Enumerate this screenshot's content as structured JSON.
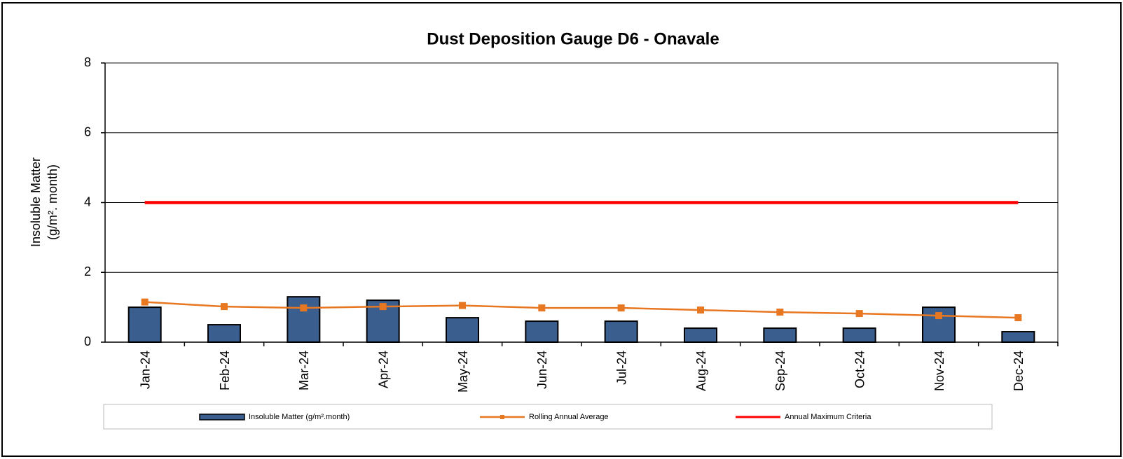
{
  "chart_data": {
    "type": "bar",
    "title": "Dust Deposition Gauge D6 - Onavale",
    "y_label": [
      "Insoluble  Matter",
      "(g/m². month)"
    ],
    "categories": [
      "Jan-24",
      "Feb-24",
      "Mar-24",
      "Apr-24",
      "May-24",
      "Jun-24",
      "Jul-24",
      "Aug-24",
      "Sep-24",
      "Oct-24",
      "Nov-24",
      "Dec-24"
    ],
    "series": [
      {
        "name": "Insoluble Matter (g/m².month)",
        "type": "bar",
        "color": "#3a5f8f",
        "values": [
          1.0,
          0.5,
          1.3,
          1.2,
          0.7,
          0.6,
          0.6,
          0.4,
          0.4,
          0.4,
          1.0,
          0.3
        ]
      },
      {
        "name": "Rolling Annual Average",
        "type": "line",
        "marker": "square",
        "color": "#e87722",
        "values": [
          1.15,
          1.02,
          0.98,
          1.02,
          1.05,
          0.98,
          0.98,
          0.92,
          0.86,
          0.82,
          0.76,
          0.7
        ]
      },
      {
        "name": "Annual Maximum Criteria",
        "type": "line",
        "color": "#ff0000",
        "values": [
          4,
          4,
          4,
          4,
          4,
          4,
          4,
          4,
          4,
          4,
          4,
          4
        ]
      }
    ],
    "ylim": [
      0,
      8
    ],
    "yticks": [
      0,
      2,
      4,
      6,
      8
    ],
    "grid": true,
    "legend": "bottom"
  }
}
